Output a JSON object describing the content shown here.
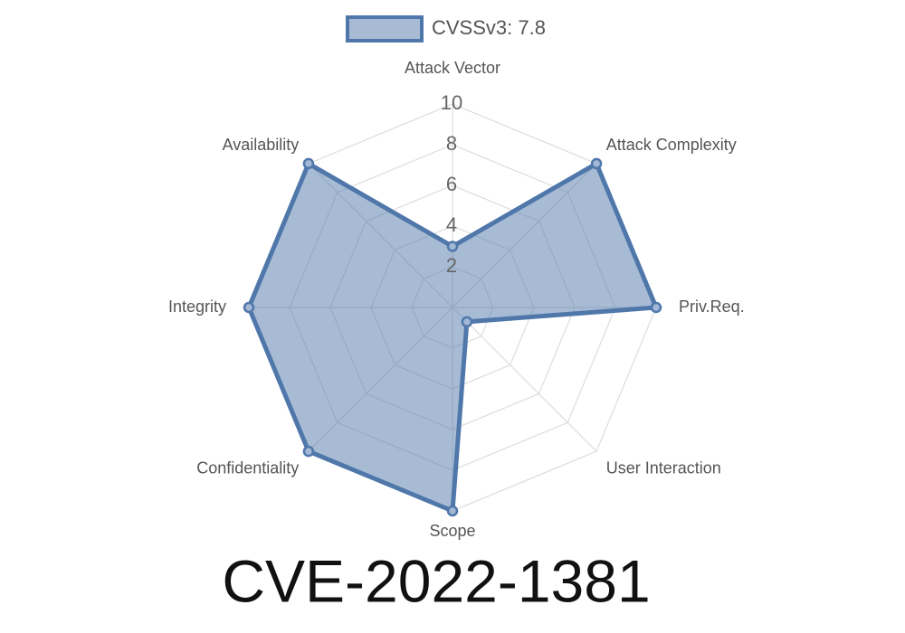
{
  "chart_data": {
    "type": "radar",
    "title": "CVE-2022-1381",
    "categories": [
      "Attack Vector",
      "Attack Complexity",
      "Priv.Req.",
      "User Interaction",
      "Scope",
      "Confidentiality",
      "Integrity",
      "Availability"
    ],
    "series": [
      {
        "name": "CVSSv3: 7.8",
        "color": "#4f77aa",
        "values": [
          3,
          10,
          10,
          1,
          10,
          10,
          10,
          10
        ]
      }
    ],
    "ylim": [
      0,
      10
    ],
    "yticks": [
      2,
      4,
      6,
      8,
      10
    ],
    "grid": true
  }
}
